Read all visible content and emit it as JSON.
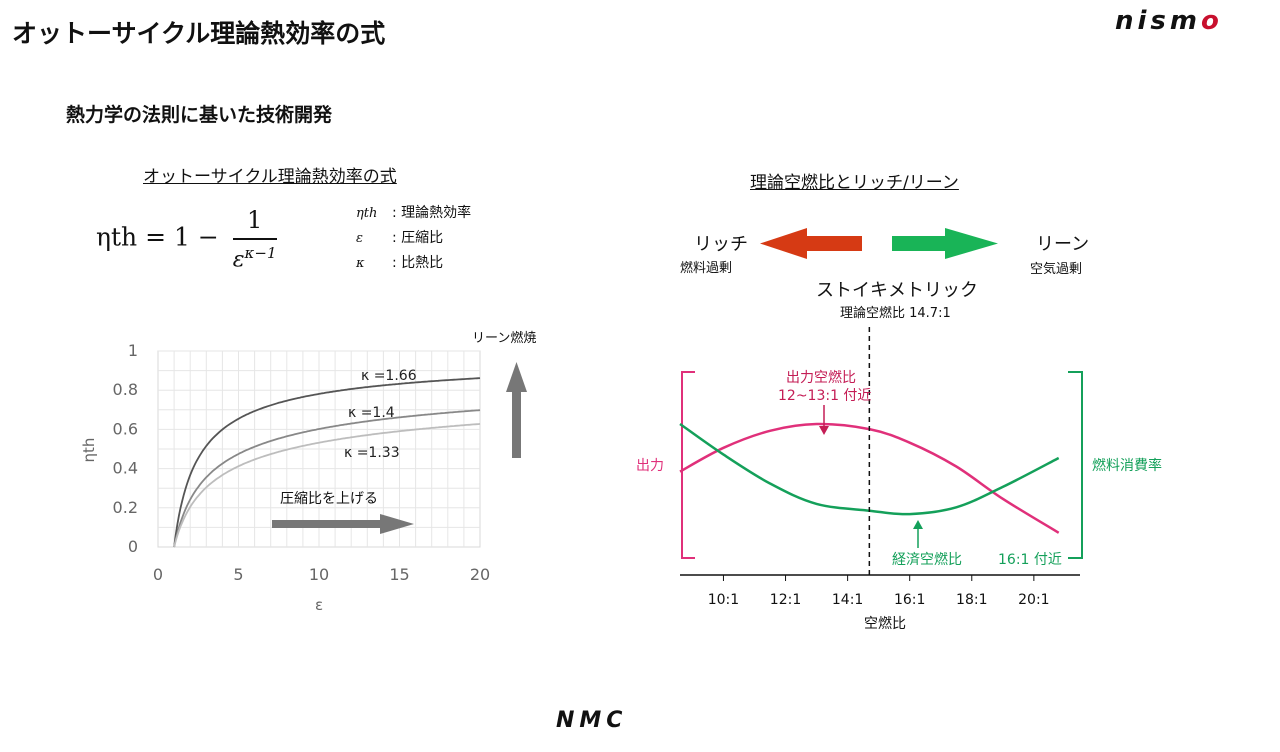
{
  "header": {
    "title": "オットーサイクル理論熱効率の式",
    "subtitle": "熱力学の法則に基いた技術開発",
    "brand_logo": "nismo",
    "footer_logo": "NMC"
  },
  "left_panel": {
    "section_title": "オットーサイクル理論熱効率の式",
    "formula": {
      "lhs": "ηth = 1 −",
      "numerator": "1",
      "denominator_base": "ε",
      "denominator_exp": "κ−1"
    },
    "legend": [
      {
        "symbol": "ηth",
        "text": ": 理論熱効率"
      },
      {
        "symbol": "ε",
        "text": ": 圧縮比"
      },
      {
        "symbol": "κ",
        "text": ": 比熱比"
      }
    ],
    "arrow_up_label": "リーン燃焼",
    "arrow_right_label": "圧縮比を上げる"
  },
  "right_panel": {
    "section_title": "理論空燃比とリッチ/リーン",
    "rich_label": "リッチ",
    "rich_sub": "燃料過剰",
    "lean_label": "リーン",
    "lean_sub": "空気過剰",
    "stoich_label": "ストイキメトリック",
    "stoich_sub": "理論空燃比 14.7:1",
    "power_annotation_1": "出力空燃比",
    "power_annotation_2": "12~13:1 付近",
    "economy_annotation_1": "経済空燃比",
    "economy_annotation_2": "16:1 付近",
    "left_axis_label": "出力",
    "right_axis_label": "燃料消費率"
  },
  "colors": {
    "curve_dark": "#555555",
    "curve_mid": "#888888",
    "curve_light": "#bdbdbd",
    "magenta": "#e0307a",
    "green": "#14a05a",
    "red_arrow": "#d63a14",
    "green_arrow": "#19b457",
    "gray_arrow": "#777777",
    "brand_red": "#c8102e"
  },
  "chart_data": [
    {
      "type": "line",
      "xlabel": "ε",
      "ylabel": "ηth",
      "xlim": [
        0,
        20
      ],
      "ylim": [
        0,
        1
      ],
      "x_ticks": [
        0,
        5,
        10,
        15,
        20
      ],
      "y_ticks": [
        0,
        0.2,
        0.4,
        0.6,
        0.8,
        1
      ],
      "y_tick_labels": [
        "0",
        "0.2",
        "0.4",
        "0.6",
        "0.8",
        "1"
      ],
      "grid": true,
      "series": [
        {
          "name": "κ =1.66",
          "kappa": 1.66
        },
        {
          "name": "κ =1.4",
          "kappa": 1.4
        },
        {
          "name": "κ =1.33",
          "kappa": 1.33
        }
      ]
    },
    {
      "type": "line",
      "xlabel": "空燃比",
      "categories": [
        "10:1",
        "12:1",
        "14:1",
        "16:1",
        "18:1",
        "20:1"
      ],
      "x_values": [
        10,
        12,
        14,
        16,
        18,
        20
      ],
      "xlim": [
        8.6,
        21.1
      ],
      "stoich_x": 14.7,
      "series": [
        {
          "name": "出力",
          "x": [
            8.6,
            10,
            11.5,
            13,
            14.7,
            16,
            17.5,
            19,
            20.8
          ],
          "y": [
            0.52,
            0.66,
            0.76,
            0.8,
            0.77,
            0.69,
            0.55,
            0.36,
            0.16
          ]
        },
        {
          "name": "燃料消費率",
          "x": [
            8.6,
            10,
            11.5,
            13,
            14.7,
            16,
            17.5,
            19,
            20.8
          ],
          "y": [
            0.8,
            0.62,
            0.45,
            0.33,
            0.29,
            0.27,
            0.31,
            0.43,
            0.6
          ]
        }
      ]
    }
  ]
}
